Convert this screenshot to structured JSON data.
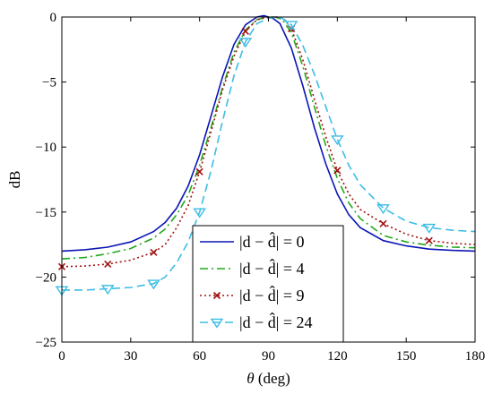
{
  "chart_data": {
    "type": "line",
    "xlabel_symbol": "θ",
    "xlabel_unit": " (deg)",
    "ylabel": "dB",
    "xlim": [
      0,
      180
    ],
    "ylim": [
      -25,
      0
    ],
    "xticks": [
      0,
      30,
      60,
      90,
      120,
      150,
      180
    ],
    "yticks": [
      0,
      -5,
      -10,
      -15,
      -20,
      -25
    ],
    "grid": false,
    "legend_position": "bottom-center",
    "series": [
      {
        "name": "|d − d̂| = 0",
        "color": "#0b16b4",
        "dash": "solid",
        "marker": "none",
        "x": [
          0,
          10,
          20,
          30,
          40,
          45,
          50,
          55,
          60,
          65,
          70,
          75,
          80,
          85,
          88,
          90,
          92,
          95,
          100,
          105,
          110,
          115,
          120,
          125,
          130,
          140,
          150,
          160,
          170,
          180
        ],
        "y": [
          -18.0,
          -17.9,
          -17.7,
          -17.3,
          -16.5,
          -15.8,
          -14.7,
          -13.0,
          -10.6,
          -7.6,
          -4.6,
          -2.1,
          -0.6,
          0.0,
          0.1,
          0.0,
          -0.1,
          -0.5,
          -2.4,
          -5.3,
          -8.5,
          -11.3,
          -13.6,
          -15.2,
          -16.2,
          -17.2,
          -17.6,
          -17.85,
          -17.95,
          -18.0
        ]
      },
      {
        "name": "|d − d̂| = 4",
        "color": "#22a81a",
        "dash": "dashdot",
        "marker": "none",
        "x": [
          0,
          10,
          20,
          30,
          40,
          45,
          50,
          55,
          60,
          65,
          70,
          75,
          80,
          85,
          90,
          93,
          96,
          100,
          105,
          110,
          115,
          120,
          125,
          130,
          140,
          150,
          160,
          170,
          180
        ],
        "y": [
          -18.6,
          -18.5,
          -18.2,
          -17.8,
          -17.0,
          -16.3,
          -15.2,
          -13.7,
          -11.4,
          -8.5,
          -5.4,
          -2.7,
          -1.0,
          -0.2,
          0.0,
          0.0,
          -0.2,
          -1.2,
          -3.8,
          -6.9,
          -9.9,
          -12.4,
          -14.3,
          -15.5,
          -16.8,
          -17.3,
          -17.55,
          -17.7,
          -17.75
        ]
      },
      {
        "name": "|d − d̂| = 9",
        "color": "#a01010",
        "dash": "dotted",
        "marker": "x",
        "marker_x": [
          0,
          20,
          40,
          60,
          80,
          100,
          120,
          140,
          160
        ],
        "x": [
          0,
          10,
          20,
          30,
          40,
          45,
          50,
          55,
          60,
          65,
          70,
          75,
          80,
          85,
          90,
          94,
          97,
          100,
          105,
          110,
          115,
          120,
          125,
          130,
          140,
          150,
          160,
          170,
          180
        ],
        "y": [
          -19.2,
          -19.15,
          -19.0,
          -18.7,
          -18.1,
          -17.5,
          -16.2,
          -14.5,
          -11.9,
          -8.8,
          -5.6,
          -3.0,
          -1.1,
          -0.2,
          0.0,
          0.0,
          -0.2,
          -0.9,
          -3.3,
          -6.3,
          -9.2,
          -11.8,
          -13.6,
          -14.8,
          -15.9,
          -16.7,
          -17.2,
          -17.4,
          -17.5
        ]
      },
      {
        "name": "|d − d̂| = 24",
        "color": "#3dbde6",
        "dash": "dashed",
        "marker": "triangle-down",
        "marker_x": [
          0,
          20,
          40,
          60,
          80,
          100,
          120,
          140,
          160
        ],
        "x": [
          0,
          10,
          20,
          30,
          40,
          45,
          50,
          55,
          60,
          65,
          70,
          75,
          80,
          85,
          90,
          93,
          96,
          100,
          105,
          110,
          115,
          120,
          125,
          130,
          140,
          150,
          160,
          170,
          180
        ],
        "y": [
          -21.0,
          -21.0,
          -20.9,
          -20.8,
          -20.5,
          -20.0,
          -18.9,
          -17.3,
          -15.0,
          -11.8,
          -8.0,
          -4.5,
          -1.9,
          -0.5,
          -0.1,
          0.0,
          -0.1,
          -0.6,
          -2.2,
          -4.4,
          -6.9,
          -9.4,
          -11.4,
          -12.9,
          -14.7,
          -15.7,
          -16.2,
          -16.4,
          -16.5
        ]
      }
    ]
  }
}
